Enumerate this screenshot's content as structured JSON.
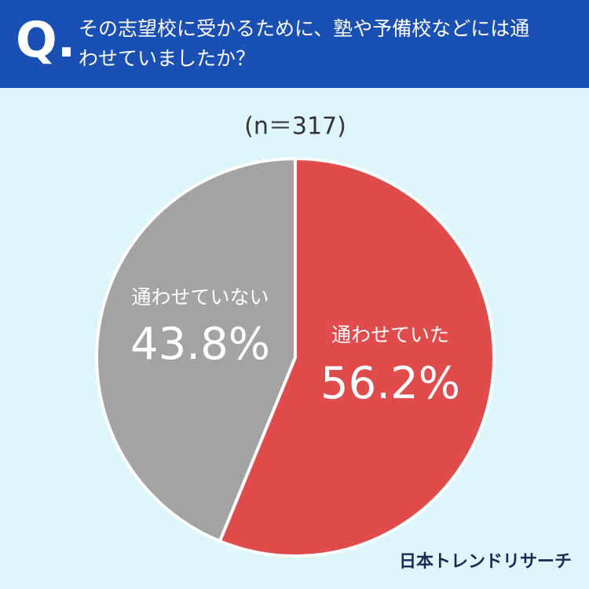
{
  "chart_data": {
    "type": "pie",
    "marker": "Q.",
    "title": "その志望校に受かるために、塾や予備校などには通わせていましたか？",
    "subtitle": "(n＝317)",
    "categories": [
      "通わせていた",
      "通わせていない"
    ],
    "values": [
      56.2,
      43.8
    ],
    "value_labels": [
      "56.2%",
      "43.8%"
    ],
    "colors": [
      "#e04b4b",
      "#a3a3a3"
    ],
    "source": "日本トレンドリサーチ"
  }
}
